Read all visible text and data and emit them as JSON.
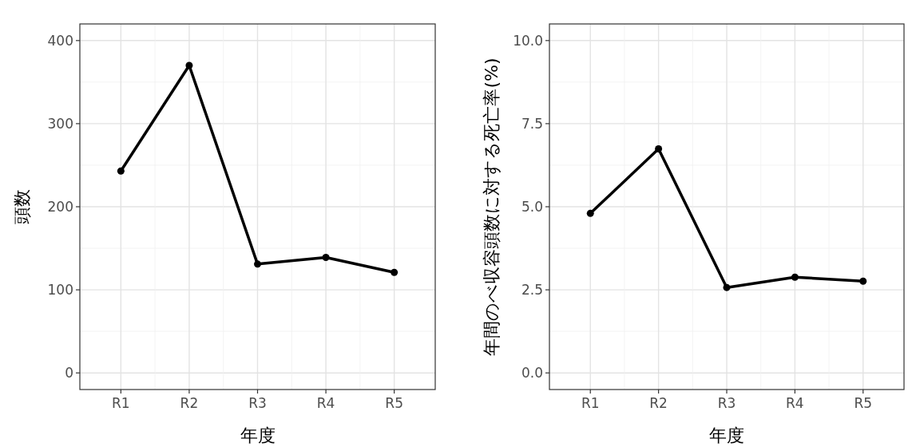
{
  "chart_data": [
    {
      "type": "line",
      "xlabel": "年度",
      "ylabel": "頭数",
      "categories": [
        "R1",
        "R2",
        "R3",
        "R4",
        "R5"
      ],
      "series": [
        {
          "color": "#000000",
          "values": [
            243,
            370,
            131,
            139,
            121
          ]
        }
      ],
      "ylim": [
        -20,
        420
      ],
      "yticks": [
        0,
        100,
        200,
        300,
        400
      ],
      "grid": true,
      "marker": "circle",
      "line_style": "solid"
    },
    {
      "type": "line",
      "xlabel": "年度",
      "ylabel": "年間のべ収容頭数に対する死亡率(%)",
      "categories": [
        "R1",
        "R2",
        "R3",
        "R4",
        "R5"
      ],
      "series": [
        {
          "color": "#000000",
          "values": [
            4.8,
            6.74,
            2.57,
            2.88,
            2.76
          ]
        }
      ],
      "ylim": [
        -0.5,
        10.5
      ],
      "yticks": [
        {
          "value": 0,
          "label": "0.0"
        },
        2.5,
        {
          "value": 5,
          "label": "5.0"
        },
        7.5,
        {
          "value": 10,
          "label": "10.0"
        }
      ],
      "grid": true,
      "marker": "circle",
      "line_style": "solid"
    }
  ]
}
